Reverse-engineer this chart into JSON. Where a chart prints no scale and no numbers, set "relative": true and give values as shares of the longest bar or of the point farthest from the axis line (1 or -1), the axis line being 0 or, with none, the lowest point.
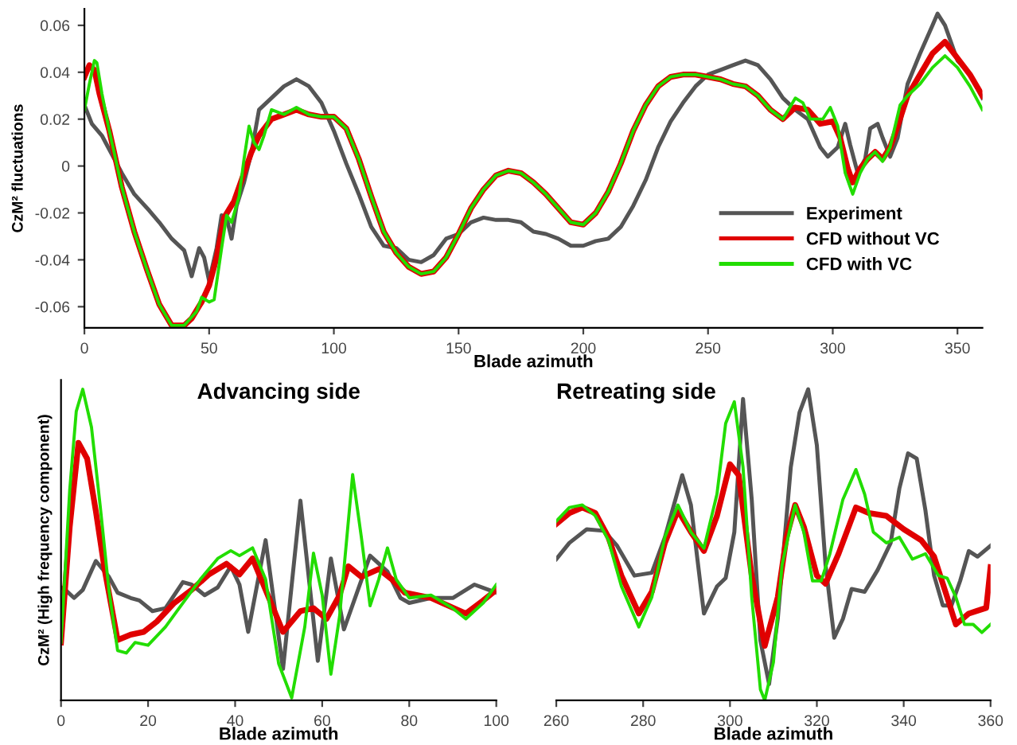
{
  "chart_data": [
    {
      "type": "line",
      "xlabel": "Blade azimuth",
      "ylabel": "CzM² fluctuations",
      "xlim": [
        0,
        360
      ],
      "ylim": [
        -0.069,
        0.067
      ],
      "xticks": [
        0,
        50,
        100,
        150,
        200,
        250,
        300,
        350
      ],
      "yticks": [
        -0.06,
        -0.04,
        -0.02,
        0,
        0.02,
        0.04,
        0.06
      ],
      "grid": false,
      "legend": "bottom right",
      "series": [
        {
          "name": "Experiment",
          "color": "#555555",
          "x": [
            0,
            3,
            7,
            10,
            15,
            20,
            26,
            30,
            35,
            40,
            43,
            46,
            48,
            50,
            53,
            55,
            57,
            59,
            61,
            64,
            67,
            70,
            75,
            80,
            85,
            90,
            95,
            100,
            105,
            110,
            115,
            120,
            125,
            130,
            135,
            140,
            145,
            150,
            155,
            160,
            165,
            170,
            175,
            180,
            185,
            190,
            195,
            200,
            205,
            210,
            215,
            220,
            225,
            230,
            235,
            240,
            245,
            250,
            255,
            260,
            265,
            270,
            275,
            280,
            285,
            290,
            295,
            298,
            302,
            305,
            307,
            310,
            313,
            315,
            318,
            320,
            323,
            326,
            330,
            335,
            340,
            342,
            345,
            350,
            355,
            360
          ],
          "values": [
            0.026,
            0.018,
            0.013,
            0.007,
            -0.003,
            -0.012,
            -0.019,
            -0.024,
            -0.031,
            -0.036,
            -0.047,
            -0.035,
            -0.039,
            -0.049,
            -0.035,
            -0.021,
            -0.022,
            -0.031,
            -0.017,
            -0.007,
            0.006,
            0.024,
            0.029,
            0.034,
            0.037,
            0.034,
            0.027,
            0.015,
            0.001,
            -0.012,
            -0.026,
            -0.034,
            -0.035,
            -0.04,
            -0.041,
            -0.038,
            -0.031,
            -0.029,
            -0.024,
            -0.022,
            -0.023,
            -0.023,
            -0.024,
            -0.028,
            -0.029,
            -0.031,
            -0.034,
            -0.034,
            -0.032,
            -0.031,
            -0.026,
            -0.017,
            -0.006,
            0.008,
            0.019,
            0.027,
            0.034,
            0.039,
            0.041,
            0.043,
            0.045,
            0.043,
            0.037,
            0.029,
            0.024,
            0.02,
            0.008,
            0.004,
            0.008,
            0.018,
            0.009,
            -0.003,
            0.003,
            0.016,
            0.018,
            0.012,
            0.004,
            0.012,
            0.035,
            0.048,
            0.06,
            0.065,
            0.06,
            0.045,
            0.039,
            0.029
          ]
        },
        {
          "name": "CFD without VC",
          "color": "#e00000",
          "x": [
            0,
            2,
            4,
            6,
            10,
            15,
            20,
            25,
            30,
            35,
            40,
            43,
            47,
            50,
            53,
            56,
            60,
            63,
            67,
            70,
            75,
            80,
            85,
            90,
            95,
            100,
            105,
            110,
            115,
            120,
            125,
            130,
            135,
            140,
            145,
            150,
            155,
            160,
            165,
            170,
            175,
            180,
            185,
            190,
            195,
            200,
            205,
            210,
            215,
            220,
            225,
            230,
            235,
            240,
            245,
            250,
            255,
            260,
            265,
            270,
            275,
            280,
            285,
            290,
            295,
            300,
            303,
            306,
            308,
            311,
            314,
            317,
            320,
            323,
            326,
            330,
            335,
            340,
            345,
            350,
            355,
            360
          ],
          "values": [
            0.038,
            0.043,
            0.041,
            0.031,
            0.015,
            -0.009,
            -0.028,
            -0.044,
            -0.059,
            -0.068,
            -0.068,
            -0.065,
            -0.058,
            -0.051,
            -0.039,
            -0.022,
            -0.015,
            -0.006,
            0.006,
            0.013,
            0.02,
            0.022,
            0.024,
            0.022,
            0.021,
            0.021,
            0.016,
            0.003,
            -0.013,
            -0.028,
            -0.037,
            -0.043,
            -0.046,
            -0.045,
            -0.039,
            -0.029,
            -0.018,
            -0.01,
            -0.004,
            -0.002,
            -0.003,
            -0.007,
            -0.012,
            -0.018,
            -0.024,
            -0.025,
            -0.02,
            -0.011,
            0.001,
            0.015,
            0.026,
            0.034,
            0.038,
            0.039,
            0.039,
            0.038,
            0.037,
            0.035,
            0.034,
            0.03,
            0.024,
            0.02,
            0.025,
            0.024,
            0.018,
            0.019,
            0.012,
            -0.001,
            -0.007,
            -0.001,
            0.003,
            0.006,
            0.003,
            0.008,
            0.017,
            0.03,
            0.039,
            0.048,
            0.053,
            0.046,
            0.039,
            0.03
          ]
        },
        {
          "name": "CFD with VC",
          "color": "#22dd00",
          "x": [
            0,
            2,
            4,
            5,
            7,
            10,
            15,
            20,
            25,
            30,
            35,
            40,
            45,
            47,
            50,
            52,
            55,
            57,
            59,
            62,
            64,
            66,
            68,
            70,
            72,
            75,
            80,
            85,
            90,
            95,
            100,
            105,
            110,
            115,
            120,
            125,
            130,
            135,
            140,
            145,
            150,
            155,
            160,
            165,
            170,
            175,
            180,
            185,
            190,
            195,
            200,
            205,
            210,
            215,
            220,
            225,
            230,
            235,
            240,
            245,
            250,
            255,
            260,
            265,
            270,
            275,
            280,
            285,
            288,
            291,
            296,
            299,
            302,
            305,
            308,
            311,
            314,
            317,
            320,
            323,
            327,
            330,
            335,
            340,
            345,
            350,
            355,
            360
          ],
          "values": [
            0.024,
            0.035,
            0.045,
            0.044,
            0.031,
            0.015,
            -0.009,
            -0.028,
            -0.044,
            -0.059,
            -0.068,
            -0.068,
            -0.062,
            -0.056,
            -0.058,
            -0.057,
            -0.035,
            -0.021,
            -0.024,
            -0.013,
            0.003,
            0.017,
            0.01,
            0.007,
            0.013,
            0.024,
            0.022,
            0.025,
            0.022,
            0.021,
            0.021,
            0.016,
            0.003,
            -0.013,
            -0.028,
            -0.037,
            -0.043,
            -0.046,
            -0.045,
            -0.039,
            -0.029,
            -0.018,
            -0.01,
            -0.004,
            -0.002,
            -0.003,
            -0.007,
            -0.012,
            -0.018,
            -0.024,
            -0.025,
            -0.02,
            -0.011,
            0.001,
            0.015,
            0.026,
            0.034,
            0.038,
            0.039,
            0.039,
            0.038,
            0.037,
            0.035,
            0.034,
            0.03,
            0.024,
            0.02,
            0.029,
            0.027,
            0.02,
            0.02,
            0.025,
            0.017,
            -0.003,
            -0.012,
            -0.003,
            0.003,
            0.006,
            0.002,
            0.008,
            0.026,
            0.03,
            0.035,
            0.042,
            0.047,
            0.042,
            0.034,
            0.024
          ]
        }
      ]
    },
    {
      "type": "line",
      "title": "Advancing side",
      "xlabel": "Blade azimuth",
      "ylabel": "CzM² (High frequency component)",
      "relative": true,
      "xlim": [
        0,
        100
      ],
      "xticks": [
        0,
        20,
        40,
        60,
        80,
        100
      ],
      "grid": false,
      "series": [
        {
          "color": "#555555",
          "x": [
            0,
            1,
            3,
            5,
            8,
            11,
            13,
            16,
            18,
            21,
            24,
            28,
            30,
            33,
            36,
            39,
            41,
            43,
            47,
            51,
            55,
            59,
            62,
            65,
            71,
            75,
            78,
            80,
            85,
            90,
            95,
            100
          ],
          "values": [
            0.363,
            0.355,
            0.329,
            0.355,
            0.448,
            0.397,
            0.346,
            0.329,
            0.321,
            0.287,
            0.296,
            0.38,
            0.372,
            0.338,
            0.363,
            0.431,
            0.372,
            0.22,
            0.515,
            0.101,
            0.642,
            0.127,
            0.456,
            0.228,
            0.465,
            0.414,
            0.329,
            0.313,
            0.329,
            0.329,
            0.372,
            0.346
          ]
        },
        {
          "color": "#e00000",
          "x": [
            0,
            2,
            4,
            6,
            8,
            10,
            13,
            16,
            19,
            22,
            26,
            30,
            34,
            38,
            41,
            44,
            47,
            51,
            55,
            58,
            61,
            64,
            66,
            69,
            73,
            76,
            79,
            85,
            89,
            93,
            97,
            100
          ],
          "values": [
            0.186,
            0.557,
            0.828,
            0.777,
            0.608,
            0.422,
            0.194,
            0.211,
            0.22,
            0.253,
            0.313,
            0.355,
            0.405,
            0.439,
            0.405,
            0.456,
            0.355,
            0.22,
            0.287,
            0.296,
            0.262,
            0.338,
            0.431,
            0.397,
            0.422,
            0.389,
            0.346,
            0.329,
            0.304,
            0.279,
            0.321,
            0.355
          ]
        },
        {
          "color": "#22dd00",
          "x": [
            0,
            2,
            3.5,
            5,
            7,
            9,
            11,
            13,
            15,
            17,
            20,
            24,
            28,
            32,
            36,
            39,
            41,
            44,
            47,
            50,
            53,
            56,
            58,
            60,
            62,
            64,
            67,
            69,
            71,
            73,
            75,
            77,
            80,
            85,
            90,
            93,
            97,
            100
          ],
          "values": [
            0.186,
            0.676,
            0.929,
            1,
            0.878,
            0.625,
            0.355,
            0.16,
            0.152,
            0.186,
            0.177,
            0.236,
            0.313,
            0.389,
            0.456,
            0.481,
            0.465,
            0.49,
            0.389,
            0.118,
            0.008,
            0.236,
            0.473,
            0.338,
            0.084,
            0.27,
            0.726,
            0.524,
            0.304,
            0.389,
            0.49,
            0.389,
            0.329,
            0.338,
            0.296,
            0.262,
            0.313,
            0.372
          ]
        }
      ]
    },
    {
      "type": "line",
      "title": "Retreating side",
      "xlabel": "Blade azimuth",
      "relative": true,
      "xlim": [
        260,
        360
      ],
      "xticks": [
        260,
        280,
        300,
        320,
        340,
        360
      ],
      "grid": false,
      "series": [
        {
          "color": "#555555",
          "x": [
            260,
            263,
            267,
            271,
            274,
            278,
            282,
            285,
            289,
            291,
            294,
            297,
            299,
            301,
            303,
            305,
            307,
            309,
            311,
            314,
            316,
            318,
            320,
            322,
            324,
            326,
            328,
            331,
            334,
            337,
            339,
            341,
            343,
            345,
            347,
            349,
            351,
            353,
            355,
            357,
            360
          ],
          "values": [
            0.454,
            0.506,
            0.55,
            0.545,
            0.497,
            0.401,
            0.41,
            0.524,
            0.724,
            0.628,
            0.279,
            0.366,
            0.393,
            0.541,
            0.969,
            0.646,
            0.192,
            0.052,
            0.262,
            0.75,
            0.925,
            1,
            0.82,
            0.436,
            0.201,
            0.262,
            0.358,
            0.349,
            0.419,
            0.506,
            0.681,
            0.794,
            0.777,
            0.611,
            0.401,
            0.305,
            0.305,
            0.384,
            0.48,
            0.462,
            0.497
          ]
        },
        {
          "color": "#e00000",
          "x": [
            260,
            263,
            266,
            269,
            272,
            275,
            279,
            282,
            285,
            288,
            291,
            294,
            297,
            300,
            302,
            305,
            308,
            311,
            313,
            315,
            317,
            320,
            322,
            325,
            329,
            332,
            336,
            340,
            344,
            347,
            350,
            352,
            355,
            357,
            359,
            360
          ],
          "values": [
            0.567,
            0.602,
            0.62,
            0.602,
            0.524,
            0.401,
            0.279,
            0.349,
            0.506,
            0.611,
            0.541,
            0.48,
            0.593,
            0.759,
            0.724,
            0.401,
            0.175,
            0.332,
            0.524,
            0.628,
            0.558,
            0.401,
            0.375,
            0.471,
            0.62,
            0.602,
            0.593,
            0.55,
            0.515,
            0.462,
            0.332,
            0.244,
            0.279,
            0.288,
            0.297,
            0.428
          ]
        },
        {
          "color": "#22dd00",
          "x": [
            260,
            263,
            266,
            269,
            272,
            275,
            279,
            282,
            285,
            288,
            291,
            294,
            297,
            299,
            301,
            303,
            305,
            307,
            308,
            310,
            312,
            315,
            317,
            319,
            321,
            323,
            326,
            329,
            331,
            333,
            336,
            339,
            342,
            345,
            348,
            350,
            352,
            354,
            356,
            358,
            360
          ],
          "values": [
            0.576,
            0.62,
            0.628,
            0.593,
            0.515,
            0.366,
            0.236,
            0.332,
            0.524,
            0.628,
            0.541,
            0.489,
            0.663,
            0.89,
            0.96,
            0.75,
            0.332,
            0.035,
            0,
            0.122,
            0.436,
            0.628,
            0.541,
            0.384,
            0.384,
            0.471,
            0.646,
            0.742,
            0.663,
            0.541,
            0.506,
            0.524,
            0.454,
            0.471,
            0.401,
            0.393,
            0.332,
            0.244,
            0.244,
            0.218,
            0.244
          ]
        }
      ]
    }
  ]
}
